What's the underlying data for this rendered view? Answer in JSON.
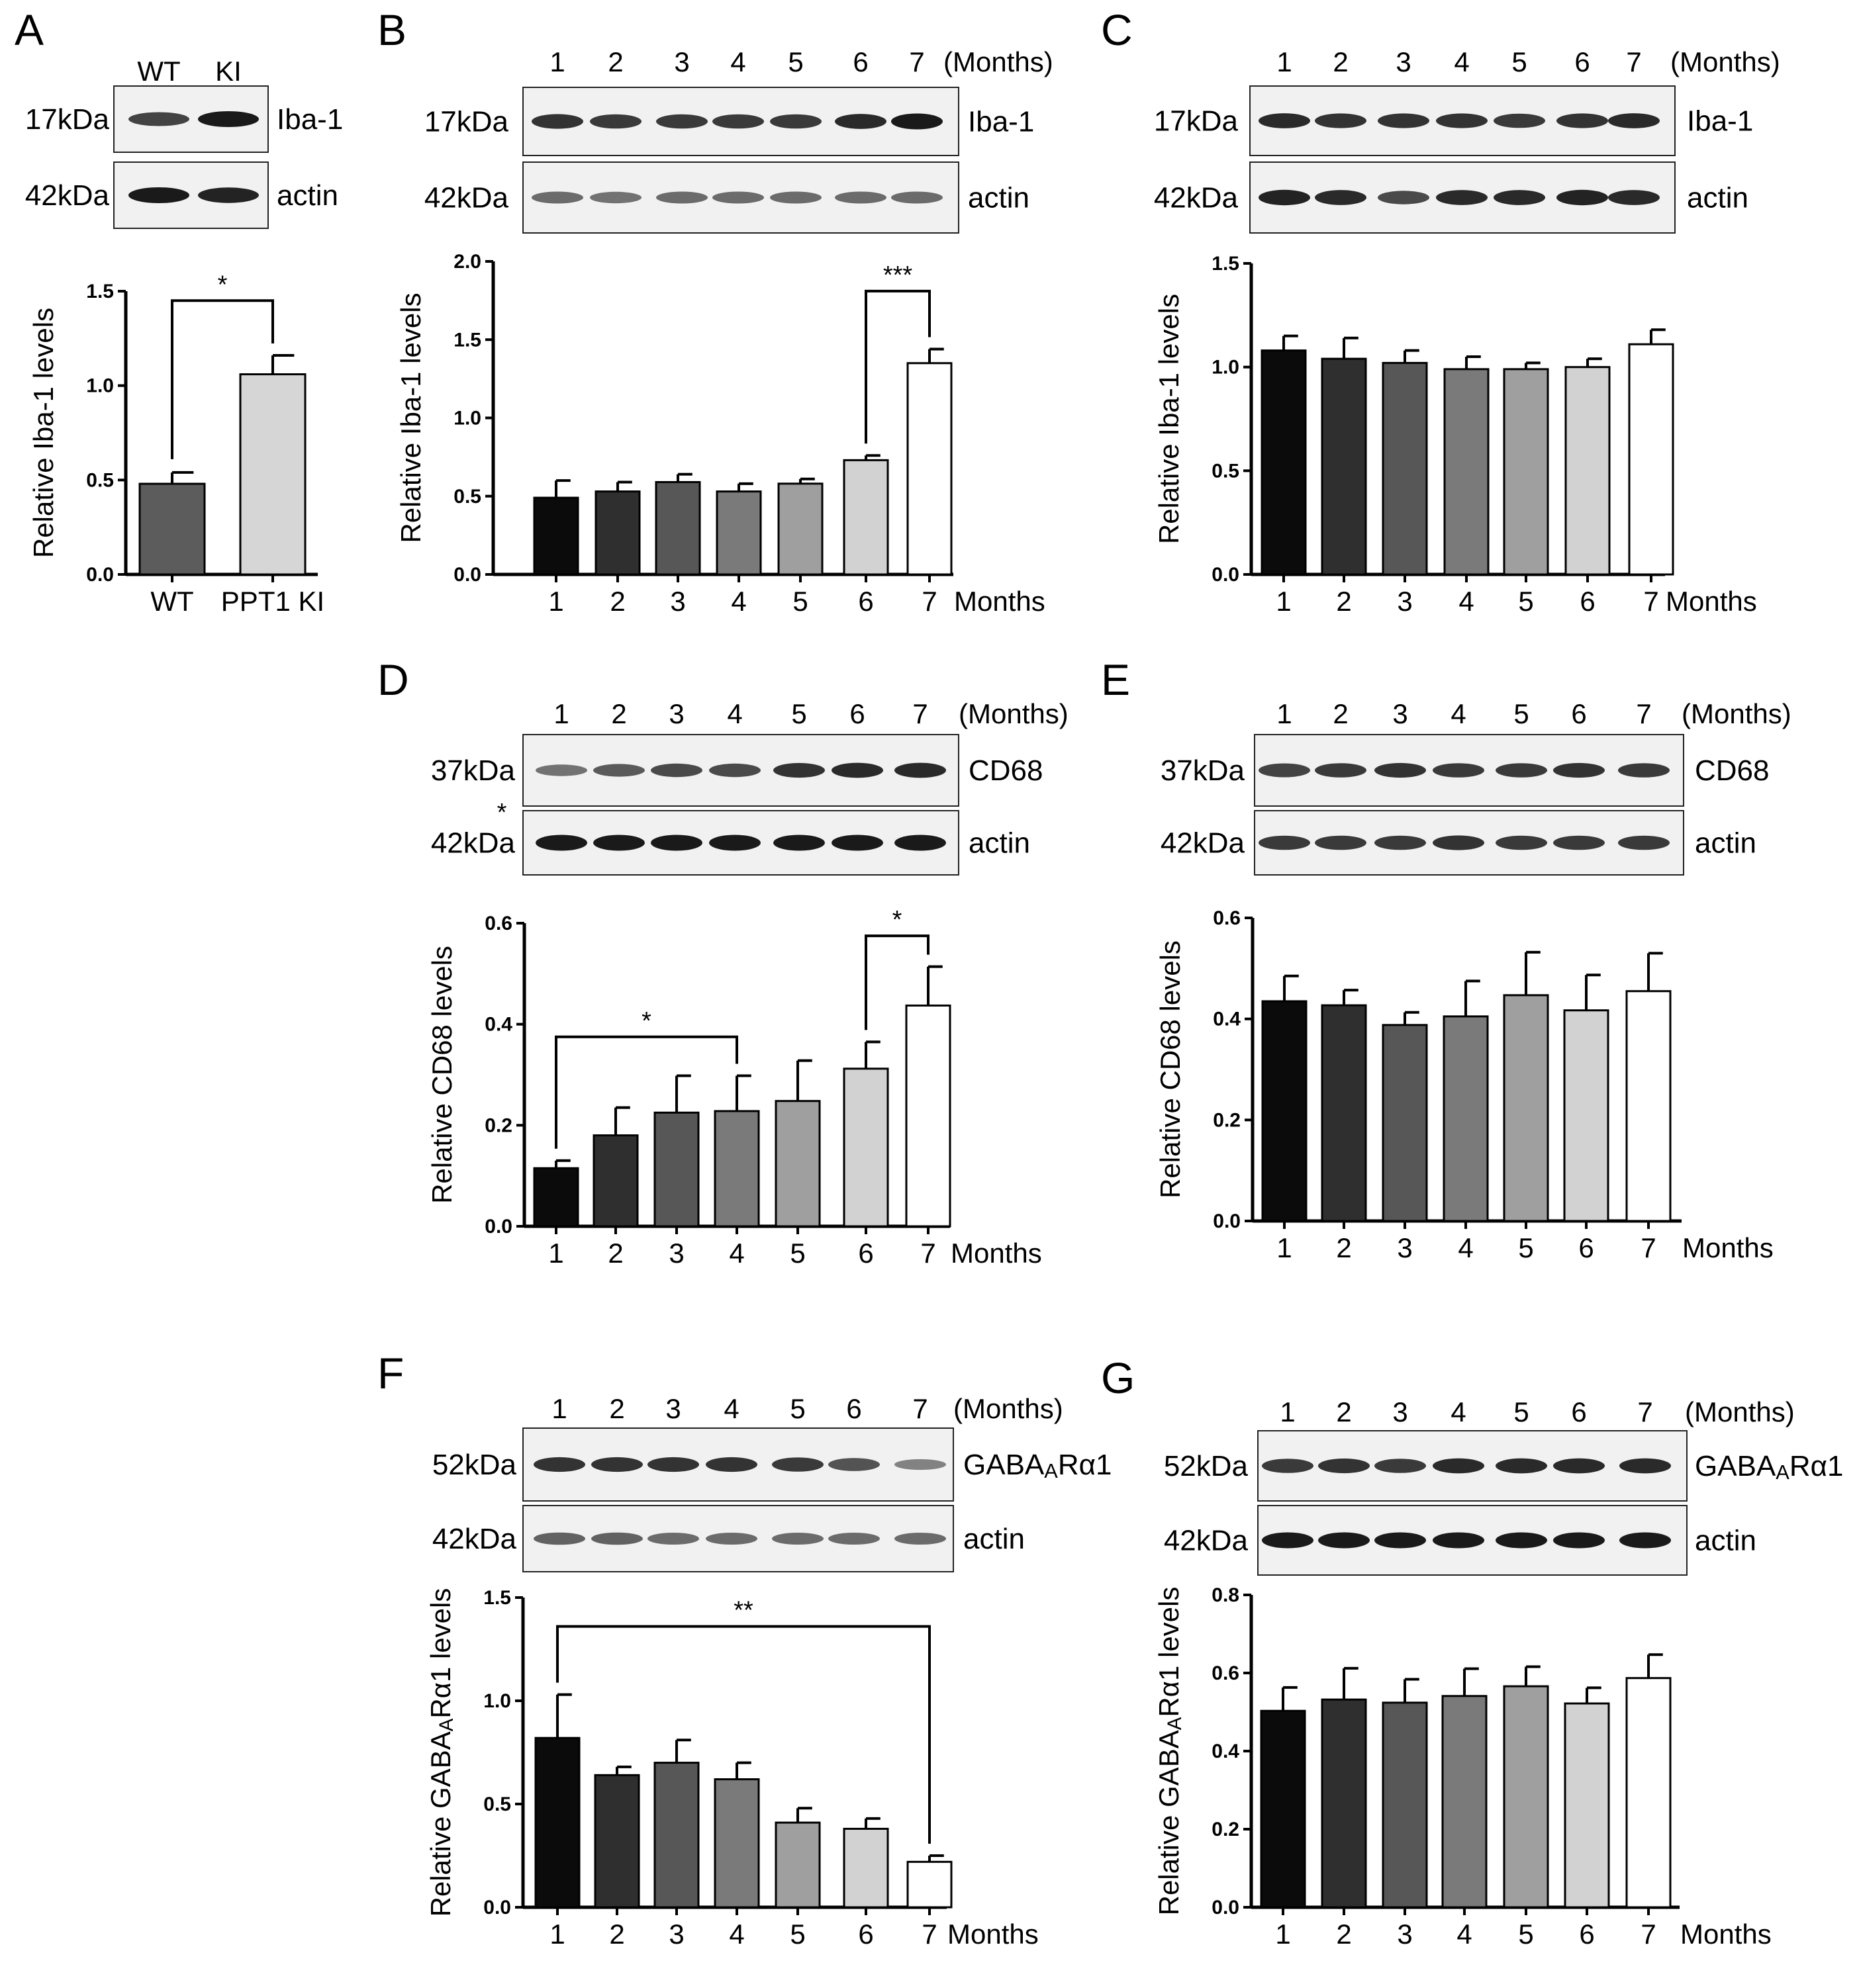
{
  "colors": {
    "bar_shades": [
      "#0b0b0b",
      "#2f2f2f",
      "#575757",
      "#7a7a7a",
      "#9f9f9f",
      "#d2d2d2",
      "#ffffff"
    ],
    "two_group": [
      "#5c5c5c",
      "#d6d6d6"
    ],
    "axis": "#000000",
    "blot_bg": "#f1f1f1",
    "band": "#1a1a1a"
  },
  "panels": [
    {
      "letter": "A",
      "lanes": [
        "WT",
        "KI"
      ],
      "blots": [
        {
          "kda": "17kDa",
          "protein": "Iba-1",
          "intensity": [
            0.75,
            1.0
          ]
        },
        {
          "kda": "42kDa",
          "protein": "actin",
          "intensity": [
            1.0,
            0.95
          ]
        }
      ],
      "months_header": "",
      "bottom_star": false
    },
    {
      "letter": "B",
      "lanes": [
        "1",
        "2",
        "3",
        "4",
        "5",
        "6",
        "7"
      ],
      "months_header": "(Months)",
      "blots": [
        {
          "kda": "17kDa",
          "protein": "Iba-1",
          "intensity": [
            0.85,
            0.8,
            0.8,
            0.8,
            0.8,
            0.9,
            1.0
          ]
        },
        {
          "kda": "42kDa",
          "protein": "actin",
          "intensity": [
            0.5,
            0.45,
            0.5,
            0.5,
            0.5,
            0.5,
            0.5
          ]
        }
      ],
      "bottom_star": false
    },
    {
      "letter": "C",
      "lanes": [
        "1",
        "2",
        "3",
        "4",
        "5",
        "6",
        "7"
      ],
      "months_header": "(Months)",
      "blots": [
        {
          "kda": "17kDa",
          "protein": "Iba-1",
          "intensity": [
            0.9,
            0.85,
            0.85,
            0.85,
            0.8,
            0.85,
            0.9
          ]
        },
        {
          "kda": "42kDa",
          "protein": "actin",
          "intensity": [
            0.95,
            0.9,
            0.7,
            0.9,
            0.9,
            0.95,
            0.9
          ]
        }
      ],
      "bottom_star": false
    },
    {
      "letter": "D",
      "lanes": [
        "1",
        "2",
        "3",
        "4",
        "5",
        "6",
        "7"
      ],
      "months_header": "(Months)",
      "blots": [
        {
          "kda": "37kDa",
          "protein": "CD68",
          "intensity": [
            0.45,
            0.6,
            0.7,
            0.7,
            0.85,
            0.9,
            0.9
          ]
        },
        {
          "kda": "42kDa",
          "protein": "actin",
          "intensity": [
            1.0,
            1.0,
            1.0,
            1.0,
            1.0,
            1.0,
            1.0
          ]
        }
      ],
      "bottom_star": true,
      "star_text": "*"
    },
    {
      "letter": "E",
      "lanes": [
        "1",
        "2",
        "3",
        "4",
        "5",
        "6",
        "7"
      ],
      "months_header": "(Months)",
      "blots": [
        {
          "kda": "37kDa",
          "protein": "CD68",
          "intensity": [
            0.75,
            0.8,
            0.85,
            0.8,
            0.8,
            0.85,
            0.8
          ]
        },
        {
          "kda": "42kDa",
          "protein": "actin",
          "intensity": [
            0.8,
            0.8,
            0.8,
            0.85,
            0.8,
            0.8,
            0.8
          ]
        }
      ],
      "bottom_star": false
    },
    {
      "letter": "F",
      "lanes": [
        "1",
        "2",
        "3",
        "4",
        "5",
        "6",
        "7"
      ],
      "months_header": "(Months)",
      "blots": [
        {
          "kda": "52kDa",
          "protein": "GABAARα1",
          "intensity": [
            0.85,
            0.85,
            0.85,
            0.85,
            0.8,
            0.65,
            0.35
          ]
        },
        {
          "kda": "42kDa",
          "protein": "actin",
          "intensity": [
            0.55,
            0.55,
            0.5,
            0.5,
            0.5,
            0.5,
            0.5
          ]
        }
      ],
      "bottom_star": false
    },
    {
      "letter": "G",
      "lanes": [
        "1",
        "2",
        "3",
        "4",
        "5",
        "6",
        "7"
      ],
      "months_header": "(Months)",
      "blots": [
        {
          "kda": "52kDa",
          "protein": "GABAARα1",
          "intensity": [
            0.8,
            0.85,
            0.8,
            0.9,
            0.9,
            0.9,
            0.9
          ]
        },
        {
          "kda": "42kDa",
          "protein": "actin",
          "intensity": [
            1.0,
            1.0,
            1.0,
            1.0,
            1.0,
            1.0,
            1.0
          ]
        }
      ],
      "bottom_star": false
    }
  ],
  "chart_data": [
    {
      "id": "A",
      "type": "bar",
      "categories": [
        "WT",
        "PPT1 KI"
      ],
      "values": [
        0.48,
        1.06
      ],
      "errors": [
        0.06,
        0.1
      ],
      "ylabel": "Relative Iba-1 levels",
      "xlabel": "",
      "ylim": [
        0,
        1.5
      ],
      "yticks": [
        "0.0",
        "0.5",
        "1.0",
        "1.5"
      ],
      "significance": [
        {
          "from": 0,
          "to": 1,
          "label": "*"
        }
      ]
    },
    {
      "id": "B",
      "type": "bar",
      "categories": [
        "1",
        "2",
        "3",
        "4",
        "5",
        "6",
        "7"
      ],
      "values": [
        0.49,
        0.53,
        0.59,
        0.53,
        0.58,
        0.73,
        1.35
      ],
      "errors": [
        0.11,
        0.06,
        0.05,
        0.05,
        0.03,
        0.03,
        0.09
      ],
      "ylabel": "Relative Iba-1 levels",
      "xlabel": "Months",
      "ylim": [
        0,
        2.0
      ],
      "yticks": [
        "0.0",
        "0.5",
        "1.0",
        "1.5",
        "2.0"
      ],
      "significance": [
        {
          "from": 5,
          "to": 6,
          "label": "***"
        }
      ]
    },
    {
      "id": "C",
      "type": "bar",
      "categories": [
        "1",
        "2",
        "3",
        "4",
        "5",
        "6",
        "7"
      ],
      "values": [
        1.08,
        1.04,
        1.02,
        0.99,
        0.99,
        1.0,
        1.11
      ],
      "errors": [
        0.07,
        0.1,
        0.06,
        0.06,
        0.03,
        0.04,
        0.07
      ],
      "ylabel": "Relative Iba-1 levels",
      "xlabel": "Months",
      "ylim": [
        0,
        1.5
      ],
      "yticks": [
        "0.0",
        "0.5",
        "1.0",
        "1.5"
      ],
      "significance": []
    },
    {
      "id": "D",
      "type": "bar",
      "categories": [
        "1",
        "2",
        "3",
        "4",
        "5",
        "6",
        "7"
      ],
      "values": [
        0.115,
        0.18,
        0.225,
        0.228,
        0.248,
        0.312,
        0.437
      ],
      "errors": [
        0.015,
        0.055,
        0.073,
        0.07,
        0.08,
        0.053,
        0.077
      ],
      "ylabel": "Relative CD68  levels",
      "xlabel": "Months",
      "ylim": [
        0,
        0.6
      ],
      "yticks": [
        "0.0",
        "0.2",
        "0.4",
        "0.6"
      ],
      "significance": [
        {
          "from": 0,
          "to": 3,
          "label": "*"
        },
        {
          "from": 5,
          "to": 6,
          "label": "*"
        }
      ]
    },
    {
      "id": "E",
      "type": "bar",
      "categories": [
        "1",
        "2",
        "3",
        "4",
        "5",
        "6",
        "7"
      ],
      "values": [
        0.435,
        0.427,
        0.388,
        0.405,
        0.447,
        0.417,
        0.455
      ],
      "errors": [
        0.05,
        0.03,
        0.025,
        0.07,
        0.085,
        0.07,
        0.075
      ],
      "ylabel": "Relative CD68  levels",
      "xlabel": "Months",
      "ylim": [
        0,
        0.6
      ],
      "yticks": [
        "0.0",
        "0.2",
        "0.4",
        "0.6"
      ],
      "significance": []
    },
    {
      "id": "F",
      "type": "bar",
      "categories": [
        "1",
        "2",
        "3",
        "4",
        "5",
        "6",
        "7"
      ],
      "values": [
        0.82,
        0.64,
        0.7,
        0.62,
        0.41,
        0.38,
        0.22
      ],
      "errors": [
        0.21,
        0.04,
        0.11,
        0.08,
        0.07,
        0.05,
        0.03
      ],
      "ylabel": "Relative GABAARα1 levels",
      "xlabel": "Months",
      "ylim": [
        0,
        1.5
      ],
      "yticks": [
        "0.0",
        "0.5",
        "1.0",
        "1.5"
      ],
      "significance": [
        {
          "from": 0,
          "to": 6,
          "label": "**"
        }
      ]
    },
    {
      "id": "G",
      "type": "bar",
      "categories": [
        "1",
        "2",
        "3",
        "4",
        "5",
        "6",
        "7"
      ],
      "values": [
        0.503,
        0.532,
        0.524,
        0.541,
        0.566,
        0.522,
        0.587
      ],
      "errors": [
        0.06,
        0.08,
        0.06,
        0.07,
        0.05,
        0.04,
        0.06
      ],
      "ylabel": "Relative GABAARα1 levels",
      "xlabel": "Months",
      "ylim": [
        0,
        0.8
      ],
      "yticks": [
        "0.0",
        "0.2",
        "0.4",
        "0.6",
        "0.8"
      ],
      "significance": []
    }
  ]
}
